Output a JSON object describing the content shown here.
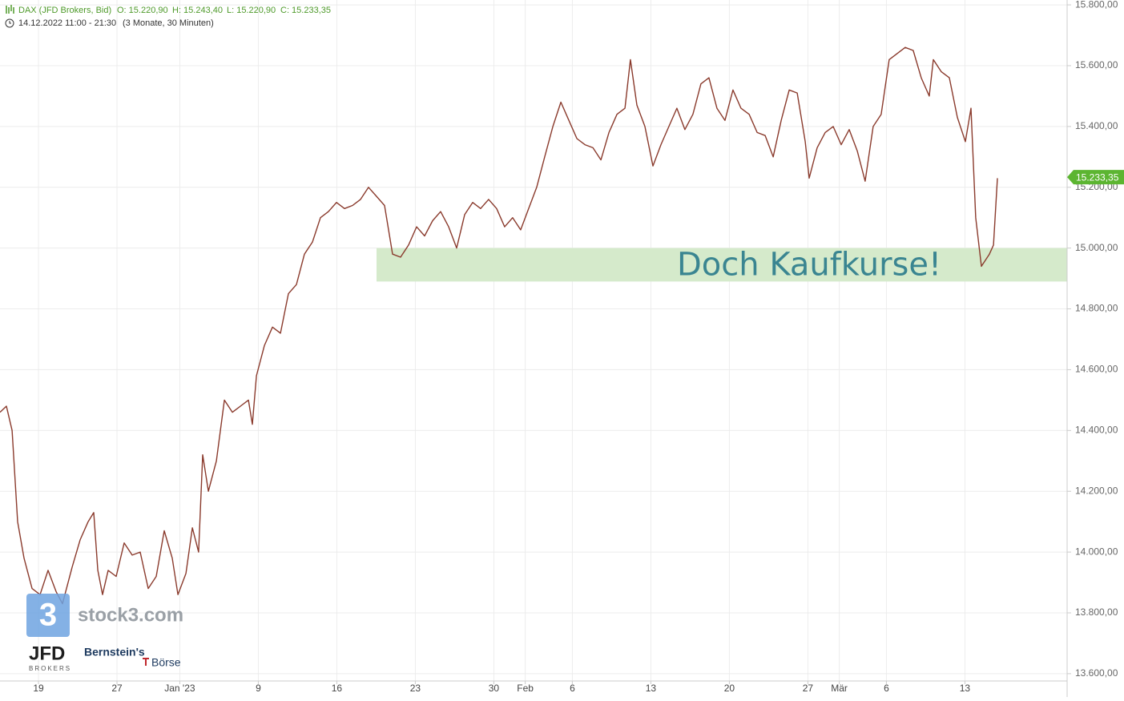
{
  "header": {
    "instrument": "DAX (JFD Brokers, Bid)",
    "open": "O: 15.220,90",
    "high": "H: 15.243,40",
    "low": "L: 15.220,90",
    "close": "C: 15.233,35",
    "period": "14.12.2022 11:00 - 21:30",
    "range": "(3 Monate, 30 Minuten)"
  },
  "logos": {
    "stock3": "stock3.com",
    "stock3_icon": "3",
    "jfd": "JFD",
    "jfd_sub": "BROKERS",
    "bernstein": "Bernstein's",
    "boerse": "Börse"
  },
  "chart_data": {
    "type": "line",
    "x": [
      -2.45,
      -2.04,
      -1.68,
      -1.33,
      -0.92,
      -0.41,
      0.1,
      0.61,
      1.12,
      1.53,
      2.14,
      2.65,
      3.16,
      3.52,
      3.78,
      4.08,
      4.44,
      4.95,
      5.46,
      5.97,
      6.48,
      6.99,
      7.5,
      8.01,
      8.52,
      8.88,
      9.39,
      9.8,
      10.2,
      10.46,
      10.82,
      11.33,
      11.84,
      12.35,
      12.86,
      13.37,
      13.62,
      13.88,
      14.39,
      14.9,
      15.41,
      15.92,
      16.43,
      16.94,
      17.45,
      17.96,
      18.47,
      18.98,
      19.49,
      20.0,
      20.51,
      21.02,
      21.53,
      22.04,
      22.55,
      23.06,
      23.57,
      24.08,
      24.59,
      25.1,
      25.61,
      26.12,
      26.63,
      27.14,
      27.65,
      28.16,
      28.67,
      29.18,
      29.69,
      30.2,
      30.71,
      31.22,
      31.73,
      32.24,
      32.76,
      33.27,
      33.78,
      34.29,
      34.8,
      35.31,
      35.82,
      36.33,
      36.84,
      37.35,
      37.7,
      38.11,
      38.62,
      39.13,
      39.64,
      40.15,
      40.66,
      41.17,
      41.68,
      42.19,
      42.7,
      43.21,
      43.72,
      44.23,
      44.74,
      45.26,
      45.77,
      46.28,
      46.79,
      47.3,
      47.81,
      48.32,
      48.83,
      49.08,
      49.59,
      50.1,
      50.61,
      51.12,
      51.63,
      52.14,
      52.65,
      53.16,
      53.67,
      54.18,
      54.69,
      55.2,
      55.71,
      56.22,
      56.73,
      56.99,
      57.5,
      58.01,
      58.52,
      59.03,
      59.39,
      59.69,
      60.05,
      60.56,
      60.82,
      61.07
    ],
    "series": [
      {
        "color": "#8a3a2c",
        "values": [
          14460,
          14480,
          14400,
          14100,
          13980,
          13880,
          13860,
          13940,
          13870,
          13830,
          13950,
          14040,
          14100,
          14130,
          13940,
          13860,
          13940,
          13920,
          14030,
          13990,
          14000,
          13880,
          13920,
          14070,
          13980,
          13860,
          13930,
          14080,
          14000,
          14320,
          14200,
          14300,
          14500,
          14460,
          14480,
          14500,
          14420,
          14580,
          14680,
          14740,
          14720,
          14850,
          14880,
          14980,
          15020,
          15100,
          15120,
          15150,
          15130,
          15140,
          15160,
          15200,
          15170,
          15140,
          14980,
          14970,
          15010,
          15070,
          15040,
          15090,
          15120,
          15070,
          15000,
          15110,
          15150,
          15130,
          15160,
          15130,
          15070,
          15100,
          15060,
          15130,
          15200,
          15300,
          15400,
          15480,
          15420,
          15360,
          15340,
          15330,
          15290,
          15380,
          15440,
          15460,
          15620,
          15470,
          15400,
          15270,
          15340,
          15400,
          15460,
          15390,
          15440,
          15540,
          15560,
          15460,
          15420,
          15520,
          15460,
          15440,
          15380,
          15370,
          15300,
          15420,
          15520,
          15510,
          15350,
          15230,
          15330,
          15380,
          15400,
          15340,
          15390,
          15320,
          15220,
          15400,
          15440,
          15620,
          15640,
          15660,
          15650,
          15560,
          15500,
          15620,
          15580,
          15560,
          15430,
          15350,
          15460,
          15100,
          14940,
          14980,
          15010,
          15230
        ]
      }
    ],
    "xlim": [
      -2.45,
      65.51
    ],
    "xticks": [
      {
        "value": 0,
        "label": "19"
      },
      {
        "value": 5,
        "label": "27"
      },
      {
        "value": 9,
        "label": "Jan '23"
      },
      {
        "value": 14,
        "label": "9"
      },
      {
        "value": 19,
        "label": "16"
      },
      {
        "value": 24,
        "label": "23"
      },
      {
        "value": 29,
        "label": "30"
      },
      {
        "value": 31,
        "label": "Feb"
      },
      {
        "value": 34,
        "label": "6"
      },
      {
        "value": 39,
        "label": "13"
      },
      {
        "value": 44,
        "label": "20"
      },
      {
        "value": 49,
        "label": "27"
      },
      {
        "value": 51,
        "label": "Mär"
      },
      {
        "value": 54,
        "label": "6"
      },
      {
        "value": 59,
        "label": "13"
      }
    ],
    "ylim": [
      13576,
      15816
    ],
    "yticks": [
      {
        "value": 13600,
        "label": "13.600,00"
      },
      {
        "value": 13800,
        "label": "13.800,00"
      },
      {
        "value": 14000,
        "label": "14.000,00"
      },
      {
        "value": 14200,
        "label": "14.200,00"
      },
      {
        "value": 14400,
        "label": "14.400,00"
      },
      {
        "value": 14600,
        "label": "14.600,00"
      },
      {
        "value": 14800,
        "label": "14.800,00"
      },
      {
        "value": 15000,
        "label": "15.000,00"
      },
      {
        "value": 15200,
        "label": "15.200,00"
      },
      {
        "value": 15400,
        "label": "15.400,00"
      },
      {
        "value": 15600,
        "label": "15.600,00"
      },
      {
        "value": 15800,
        "label": "15.800,00"
      }
    ],
    "grid": true,
    "last_price": {
      "value": 15233.35,
      "label": "15.233,35",
      "color": "#5cb531"
    },
    "zone": {
      "from": 14890,
      "to": 15000,
      "x_from": 21.53,
      "color": "#d5eacb",
      "label": "Doch Kaufkurse!",
      "label_color": "#3a8591"
    }
  }
}
